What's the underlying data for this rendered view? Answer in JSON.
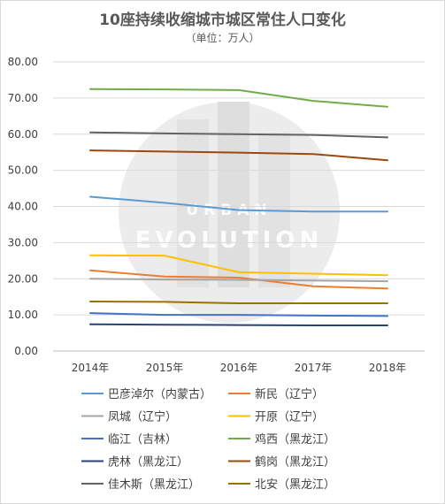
{
  "chart_data": {
    "type": "line",
    "title": "10座持续收缩城市城区常住人口变化",
    "subtitle": "（单位：万人）",
    "x": [
      "2014年",
      "2015年",
      "2016年",
      "2017年",
      "2018年"
    ],
    "ylim": [
      0,
      80
    ],
    "yticks": [
      "0.00",
      "10.00",
      "20.00",
      "30.00",
      "40.00",
      "50.00",
      "60.00",
      "70.00",
      "80.00"
    ],
    "grid": true,
    "legend_position": "bottom",
    "watermark": [
      "URBAN",
      "EVOLUTION"
    ],
    "series": [
      {
        "name": "巴彦淖尔（内蒙古）",
        "color": "#5b9bd5",
        "values": [
          42.7,
          41.0,
          39.0,
          38.6,
          38.6
        ]
      },
      {
        "name": "新民（辽宁）",
        "color": "#ed7d31",
        "values": [
          22.3,
          20.6,
          20.3,
          17.9,
          17.3
        ]
      },
      {
        "name": "凤城（辽宁）",
        "color": "#a5a5a5",
        "values": [
          20.0,
          19.8,
          19.7,
          19.5,
          19.3
        ]
      },
      {
        "name": "开原（辽宁）",
        "color": "#ffc000",
        "values": [
          26.5,
          26.4,
          21.8,
          21.4,
          21.0
        ]
      },
      {
        "name": "临江（吉林）",
        "color": "#4472c4",
        "values": [
          10.5,
          10.0,
          10.0,
          9.8,
          9.7
        ]
      },
      {
        "name": "鸡西（黑龙江）",
        "color": "#70ad47",
        "values": [
          72.5,
          72.4,
          72.2,
          69.2,
          67.6
        ]
      },
      {
        "name": "虎林（黑龙江）",
        "color": "#264478",
        "values": [
          7.4,
          7.3,
          7.2,
          7.1,
          7.1
        ]
      },
      {
        "name": "鹤岗（黑龙江）",
        "color": "#9e480e",
        "values": [
          55.5,
          55.2,
          54.9,
          54.5,
          52.8
        ]
      },
      {
        "name": "佳木斯（黑龙江）",
        "color": "#636363",
        "values": [
          60.5,
          60.2,
          60.0,
          59.8,
          59.1
        ]
      },
      {
        "name": "北安（黑龙江）",
        "color": "#997300",
        "values": [
          13.7,
          13.6,
          13.2,
          13.2,
          13.2
        ]
      }
    ]
  }
}
